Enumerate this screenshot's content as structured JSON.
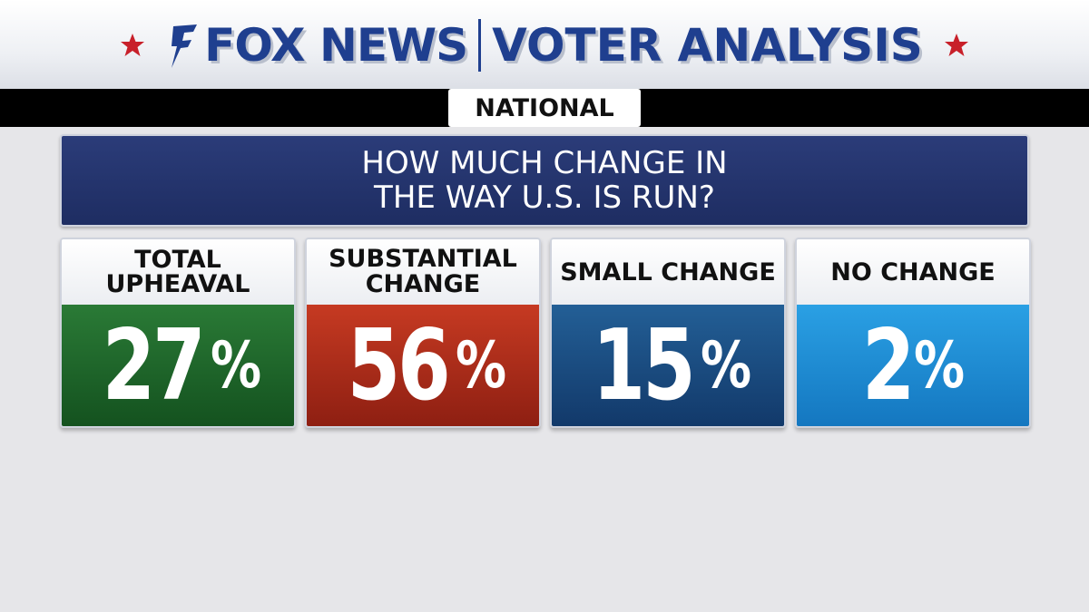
{
  "header": {
    "brand": "FOX NEWS",
    "title": "VOTER ANALYSIS"
  },
  "region": "NATIONAL",
  "question": {
    "line1": "HOW MUCH CHANGE IN",
    "line2": "THE WAY U.S. IS RUN?"
  },
  "chart_data": {
    "type": "bar",
    "categories": [
      "TOTAL UPHEAVAL",
      "SUBSTANTIAL CHANGE",
      "SMALL CHANGE",
      "NO CHANGE"
    ],
    "values": [
      27,
      56,
      15,
      2
    ],
    "unit": "%",
    "colors": [
      "#1c6b2c",
      "#b8301c",
      "#1a4f82",
      "#1e8fd6"
    ]
  },
  "colors": {
    "brand_blue": "#1f3f8f",
    "star_red": "#c8202a",
    "question_bg": "#24346d"
  }
}
